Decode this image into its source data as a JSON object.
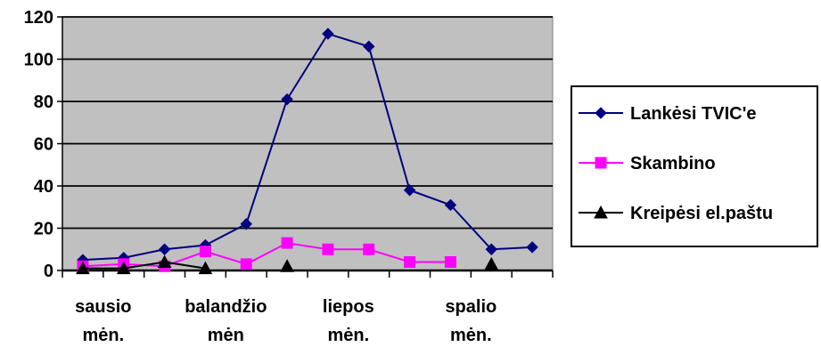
{
  "chart_data": {
    "type": "line",
    "x": [
      "sausio mėn.",
      "",
      "",
      "balandžio mėn",
      "",
      "",
      "liepos mėn.",
      "",
      "",
      "spalio mėn.",
      "",
      ""
    ],
    "x_tick_labels": [
      {
        "index": 0,
        "lines": [
          "sausio",
          "mėn."
        ]
      },
      {
        "index": 3,
        "lines": [
          "balandžio",
          "mėn"
        ]
      },
      {
        "index": 6,
        "lines": [
          "liepos",
          "mėn."
        ]
      },
      {
        "index": 9,
        "lines": [
          "spalio",
          "mėn."
        ]
      }
    ],
    "series": [
      {
        "name": "Lankėsi TVIC'e",
        "color": "#000080",
        "marker": "diamond",
        "values": [
          5,
          6,
          10,
          12,
          22,
          81,
          112,
          106,
          38,
          31,
          10,
          11
        ]
      },
      {
        "name": "Skambino",
        "color": "#ff00ff",
        "marker": "square",
        "values": [
          2,
          3,
          2,
          9,
          3,
          13,
          10,
          10,
          4,
          4,
          null,
          null
        ]
      },
      {
        "name": "Kreipėsi el.paštu",
        "color": "#000000",
        "marker": "triangle",
        "values": [
          1,
          1,
          4,
          1,
          null,
          2,
          null,
          null,
          null,
          null,
          3,
          null
        ]
      }
    ],
    "ylim": [
      0,
      120
    ],
    "yticks": [
      0,
      20,
      40,
      60,
      80,
      100,
      120
    ],
    "grid": "horizontal",
    "plot_background": "#c0c0c0",
    "legend_position": "right"
  }
}
